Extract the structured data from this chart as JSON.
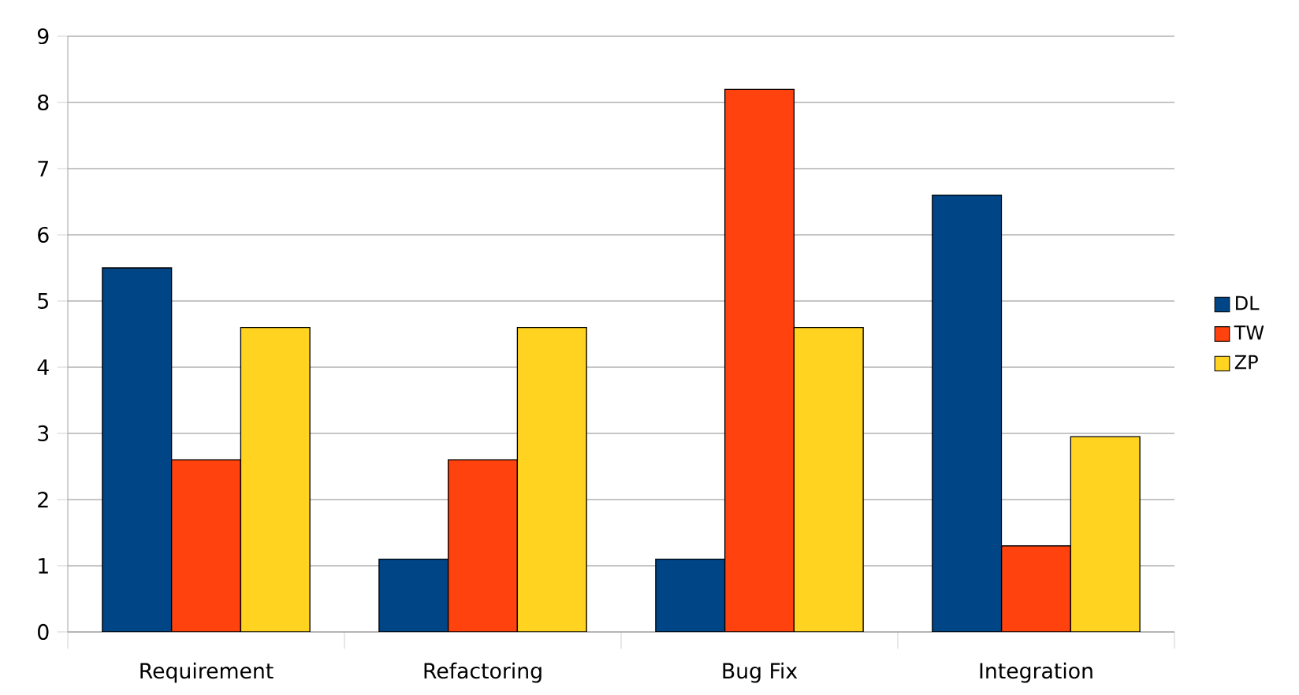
{
  "chart_data": {
    "type": "bar",
    "categories": [
      "Requirement",
      "Refactoring",
      "Bug Fix",
      "Integration"
    ],
    "series": [
      {
        "name": "DL",
        "color": "#004586",
        "values": [
          5.5,
          1.1,
          1.1,
          6.6
        ]
      },
      {
        "name": "TW",
        "color": "#ff420e",
        "values": [
          2.6,
          2.6,
          8.2,
          1.3
        ]
      },
      {
        "name": "ZP",
        "color": "#ffd320",
        "values": [
          4.6,
          4.6,
          4.6,
          2.95
        ]
      }
    ],
    "ylim": [
      0,
      9
    ],
    "yticks": [
      0,
      1,
      2,
      3,
      4,
      5,
      6,
      7,
      8,
      9
    ],
    "grid": "y",
    "legend": "right"
  }
}
